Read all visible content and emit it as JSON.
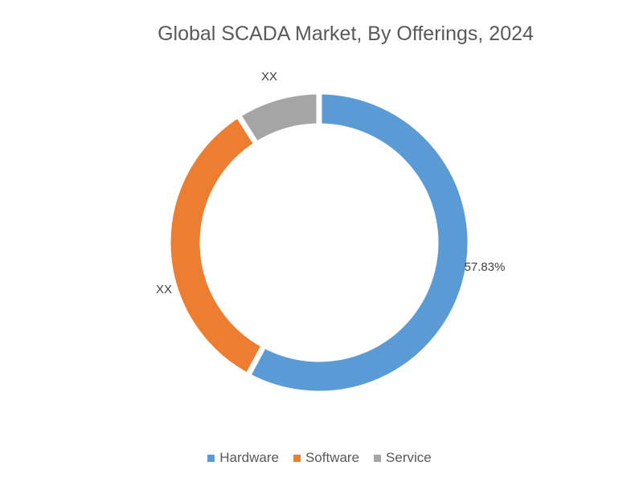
{
  "chart_data": {
    "type": "pie",
    "subtype": "donut",
    "title": "Global SCADA Market, By Offerings, 2024",
    "categories": [
      "Hardware",
      "Software",
      "Service"
    ],
    "values": [
      57.83,
      33.17,
      9.0
    ],
    "data_labels": [
      "57.83%",
      "XX",
      "XX"
    ],
    "colors": [
      "#5B9BD5",
      "#ED7D31",
      "#A5A5A5"
    ],
    "legend": "bottom"
  }
}
